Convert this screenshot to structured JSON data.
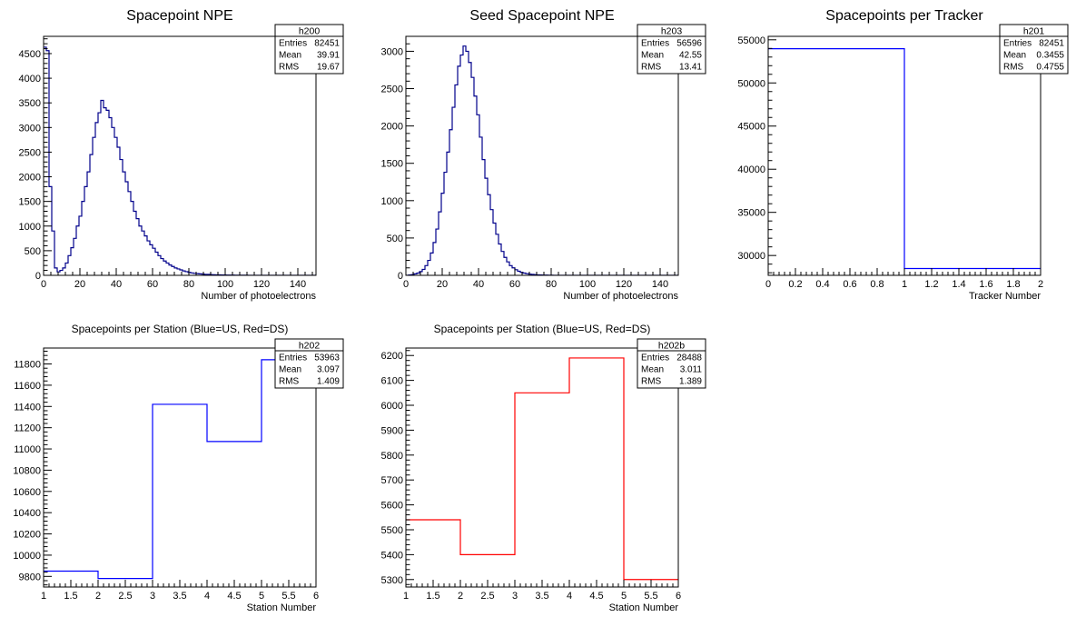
{
  "chart_data": [
    {
      "type": "histogram",
      "hist_name": "h200",
      "title": "Spacepoint NPE",
      "xlabel": "Number of photoelectrons",
      "ylabel": "",
      "xlim": [
        0,
        150
      ],
      "ylim": [
        0,
        4850
      ],
      "xticks": [
        0,
        20,
        40,
        60,
        80,
        100,
        120,
        140
      ],
      "yticks": [
        0,
        500,
        1000,
        1500,
        2000,
        2500,
        3000,
        3500,
        4000,
        4500
      ],
      "color": "#00008b",
      "bin_start": 0,
      "bin_width": 1.5,
      "values": [
        4630,
        4560,
        1800,
        900,
        150,
        70,
        100,
        150,
        250,
        400,
        560,
        750,
        1000,
        1200,
        1500,
        1800,
        2100,
        2450,
        2800,
        3100,
        3300,
        3550,
        3400,
        3350,
        3200,
        3000,
        2800,
        2600,
        2350,
        2100,
        1900,
        1700,
        1500,
        1300,
        1150,
        1000,
        900,
        800,
        700,
        620,
        550,
        470,
        400,
        340,
        290,
        250,
        210,
        180,
        150,
        130,
        110,
        90,
        75,
        60,
        50,
        40,
        35,
        30,
        25,
        20,
        18,
        15,
        12,
        10,
        9,
        8,
        7,
        6,
        5,
        4,
        3,
        3,
        2,
        2,
        2,
        1,
        1,
        1,
        1,
        1,
        1,
        1,
        1,
        1,
        1,
        1,
        1,
        1,
        1,
        1,
        1,
        1,
        1,
        1,
        1,
        1,
        1,
        1,
        1,
        1
      ],
      "stats": [
        {
          "label": "Entries",
          "value": "82451"
        },
        {
          "label": "Mean",
          "value": "39.91"
        },
        {
          "label": "RMS",
          "value": "19.67"
        }
      ]
    },
    {
      "type": "histogram",
      "hist_name": "h203",
      "title": "Seed Spacepoint NPE",
      "xlabel": "Number of photoelectrons",
      "ylabel": "",
      "xlim": [
        0,
        150
      ],
      "ylim": [
        0,
        3200
      ],
      "xticks": [
        0,
        20,
        40,
        60,
        80,
        100,
        120,
        140
      ],
      "yticks": [
        0,
        500,
        1000,
        1500,
        2000,
        2500,
        3000
      ],
      "color": "#00008b",
      "bin_start": 0,
      "bin_width": 1.5,
      "values": [
        0,
        5,
        10,
        20,
        30,
        50,
        80,
        130,
        200,
        300,
        440,
        620,
        850,
        1100,
        1380,
        1650,
        1950,
        2250,
        2550,
        2800,
        2950,
        3070,
        3000,
        2850,
        2650,
        2400,
        2150,
        1850,
        1550,
        1300,
        1080,
        880,
        700,
        550,
        420,
        320,
        240,
        180,
        130,
        100,
        75,
        55,
        40,
        30,
        22,
        16,
        12,
        9,
        7,
        5,
        4,
        3,
        2,
        2,
        1,
        1,
        1,
        1,
        1,
        0,
        0,
        0,
        0,
        0,
        0,
        0,
        0,
        0,
        0,
        0,
        0,
        0,
        0,
        0,
        0,
        0,
        0,
        0,
        0,
        0,
        0,
        0,
        0,
        0,
        0,
        0,
        0,
        0,
        0,
        0,
        0,
        0,
        0,
        0,
        0,
        0,
        0,
        0,
        0,
        0
      ],
      "stats": [
        {
          "label": "Entries",
          "value": "56596"
        },
        {
          "label": "Mean",
          "value": "42.55"
        },
        {
          "label": "RMS",
          "value": "13.41"
        }
      ]
    },
    {
      "type": "histogram",
      "hist_name": "h201",
      "title": "Spacepoints per Tracker",
      "xlabel": "Tracker Number",
      "ylabel": "",
      "xlim": [
        0,
        2
      ],
      "ylim": [
        27700,
        55400
      ],
      "xticks": [
        0,
        0.2,
        0.4,
        0.6,
        0.8,
        1,
        1.2,
        1.4,
        1.6,
        1.8,
        2
      ],
      "yticks": [
        30000,
        35000,
        40000,
        45000,
        50000,
        55000
      ],
      "color": "#0000ff",
      "bin_start": 0,
      "bin_width": 1,
      "values": [
        53963,
        28488
      ],
      "stats": [
        {
          "label": "Entries",
          "value": "82451"
        },
        {
          "label": "Mean",
          "value": "0.3455"
        },
        {
          "label": "RMS",
          "value": "0.4755"
        }
      ]
    },
    {
      "type": "histogram",
      "hist_name": "h202",
      "title": "Spacepoints per Station (Blue=US, Red=DS)",
      "xlabel": "Station Number",
      "ylabel": "",
      "xlim": [
        1,
        6
      ],
      "ylim": [
        9700,
        11950
      ],
      "xticks": [
        1,
        1.5,
        2,
        2.5,
        3,
        3.5,
        4,
        4.5,
        5,
        5.5,
        6
      ],
      "yticks": [
        9800,
        10000,
        10200,
        10400,
        10600,
        10800,
        11000,
        11200,
        11400,
        11600,
        11800
      ],
      "color": "#0000ff",
      "bin_start": 1,
      "bin_width": 1,
      "values": [
        9850,
        9780,
        11420,
        11070,
        11840
      ],
      "stats": [
        {
          "label": "Entries",
          "value": "53963"
        },
        {
          "label": "Mean",
          "value": "3.097"
        },
        {
          "label": "RMS",
          "value": "1.409"
        }
      ]
    },
    {
      "type": "histogram",
      "hist_name": "h202b",
      "title": "Spacepoints per Station (Blue=US, Red=DS)",
      "xlabel": "Station Number",
      "ylabel": "",
      "xlim": [
        1,
        6
      ],
      "ylim": [
        5270,
        6230
      ],
      "xticks": [
        1,
        1.5,
        2,
        2.5,
        3,
        3.5,
        4,
        4.5,
        5,
        5.5,
        6
      ],
      "yticks": [
        5300,
        5400,
        5500,
        5600,
        5700,
        5800,
        5900,
        6000,
        6100,
        6200
      ],
      "color": "#ff0000",
      "bin_start": 1,
      "bin_width": 1,
      "values": [
        5540,
        5400,
        6050,
        6190,
        5300
      ],
      "stats": [
        {
          "label": "Entries",
          "value": "28488"
        },
        {
          "label": "Mean",
          "value": "3.011"
        },
        {
          "label": "RMS",
          "value": "1.389"
        }
      ]
    }
  ]
}
